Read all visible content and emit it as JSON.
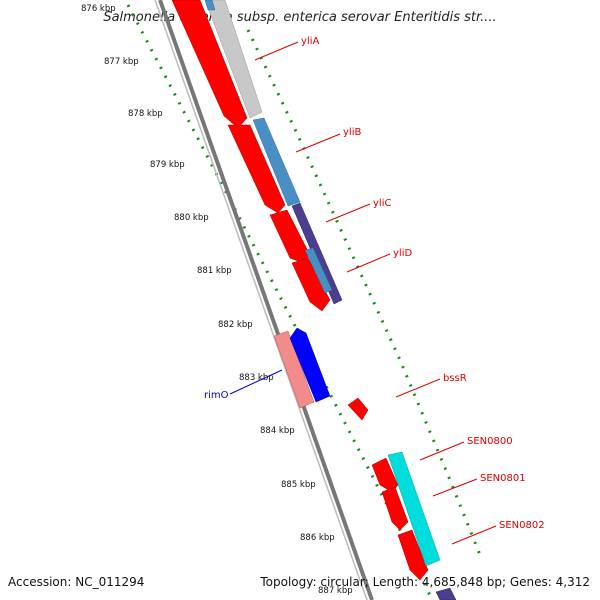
{
  "title": "Salmonella enterica subsp. enterica serovar Enteritidis str....",
  "footer": {
    "accession": "Accession: NC_011294",
    "summary": "Topology: circular; Length: 4,685,848 bp; Genes: 4,312"
  },
  "colors": {
    "forward_gene": "#ff0000",
    "reverse_gene": "#ff0000",
    "backbone": "#888888",
    "tick_dots": "#1a8a1a",
    "gene_label": "#dd0000",
    "special_label": "#0000cc"
  },
  "ticks": [
    "876 kbp",
    "877 kbp",
    "878 kbp",
    "879 kbp",
    "880 kbp",
    "881 kbp",
    "882 kbp",
    "883 kbp",
    "884 kbp",
    "885 kbp",
    "886 kbp",
    "887 kbp"
  ],
  "gene_labels": [
    {
      "text": "yliA",
      "color": "#dd0000"
    },
    {
      "text": "yliB",
      "color": "#dd0000"
    },
    {
      "text": "yliC",
      "color": "#dd0000"
    },
    {
      "text": "yliD",
      "color": "#dd0000"
    },
    {
      "text": "bssR",
      "color": "#dd0000"
    },
    {
      "text": "SEN0800",
      "color": "#dd0000"
    },
    {
      "text": "SEN0801",
      "color": "#dd0000"
    },
    {
      "text": "SEN0802",
      "color": "#dd0000"
    },
    {
      "text": "rimO",
      "color": "#0000cc"
    }
  ]
}
